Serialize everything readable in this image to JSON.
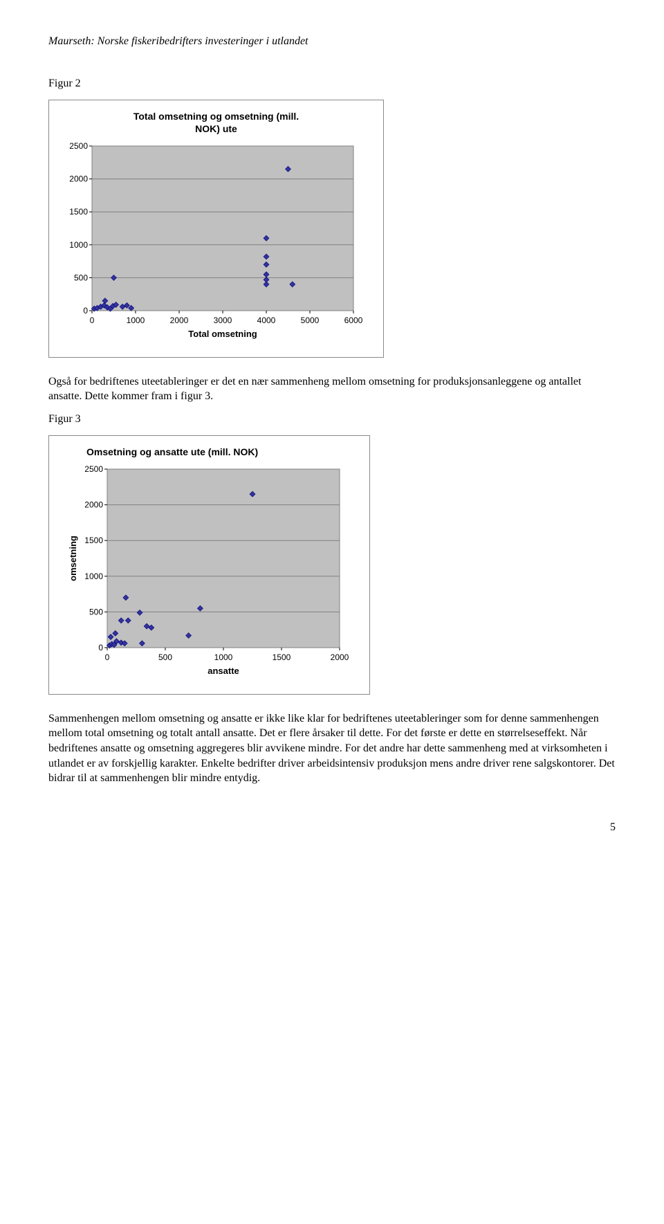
{
  "header": "Maurseth: Norske fiskeribedrifters investeringer i utlandet",
  "fig2": {
    "label": "Figur 2",
    "chart": {
      "type": "scatter",
      "title": "Total omsetning og omsetning (mill.\nNOK) ute",
      "xlabel": "Total omsetning",
      "xlim": [
        0,
        6000
      ],
      "xticks": [
        0,
        1000,
        2000,
        3000,
        4000,
        5000,
        6000
      ],
      "ylim": [
        0,
        2500
      ],
      "yticks": [
        0,
        500,
        1000,
        1500,
        2000,
        2500
      ],
      "background_color": "#c0c0c0",
      "grid_color": "#808080",
      "marker_color": "#333399",
      "marker_border": "#000080",
      "marker_size": 8,
      "points": [
        [
          50,
          30
        ],
        [
          120,
          40
        ],
        [
          200,
          60
        ],
        [
          280,
          80
        ],
        [
          350,
          50
        ],
        [
          420,
          30
        ],
        [
          480,
          70
        ],
        [
          550,
          90
        ],
        [
          300,
          150
        ],
        [
          500,
          500
        ],
        [
          700,
          60
        ],
        [
          800,
          80
        ],
        [
          900,
          40
        ],
        [
          4000,
          400
        ],
        [
          4000,
          470
        ],
        [
          4000,
          550
        ],
        [
          4000,
          700
        ],
        [
          4000,
          820
        ],
        [
          4000,
          1100
        ],
        [
          4500,
          2150
        ],
        [
          4600,
          400
        ]
      ]
    }
  },
  "para1": "Også for bedriftenes uteetableringer er det en nær sammenheng mellom omsetning for produksjonsanleggene og antallet ansatte. Dette kommer fram i figur 3.",
  "fig3": {
    "label": "Figur 3",
    "chart": {
      "type": "scatter",
      "title": "Omsetning og ansatte ute (mill. NOK)",
      "xlabel": "ansatte",
      "ylabel": "omsetning",
      "xlim": [
        0,
        2000
      ],
      "xticks": [
        0,
        500,
        1000,
        1500,
        2000
      ],
      "ylim": [
        0,
        2500
      ],
      "yticks": [
        0,
        500,
        1000,
        1500,
        2000,
        2500
      ],
      "background_color": "#c0c0c0",
      "grid_color": "#808080",
      "marker_color": "#333399",
      "marker_border": "#000080",
      "marker_size": 8,
      "points": [
        [
          20,
          30
        ],
        [
          40,
          50
        ],
        [
          60,
          40
        ],
        [
          80,
          90
        ],
        [
          120,
          70
        ],
        [
          150,
          60
        ],
        [
          30,
          150
        ],
        [
          70,
          200
        ],
        [
          120,
          380
        ],
        [
          180,
          380
        ],
        [
          160,
          700
        ],
        [
          280,
          490
        ],
        [
          340,
          300
        ],
        [
          380,
          280
        ],
        [
          700,
          170
        ],
        [
          800,
          550
        ],
        [
          1250,
          2150
        ],
        [
          300,
          60
        ]
      ]
    }
  },
  "para2": "Sammenhengen mellom omsetning og ansatte er ikke like klar for bedriftenes uteetableringer som for denne sammenhengen mellom total omsetning og totalt antall ansatte. Det er flere årsaker til dette. For det første er dette en størrelseseffekt. Når bedriftenes ansatte og omsetning aggregeres blir avvikene mindre. For det andre har dette sammenheng med at virksomheten i utlandet er av forskjellig karakter. Enkelte bedrifter driver arbeidsintensiv produksjon mens andre driver rene salgskontorer. Det bidrar til at sammenhengen blir mindre entydig.",
  "page_num": "5"
}
